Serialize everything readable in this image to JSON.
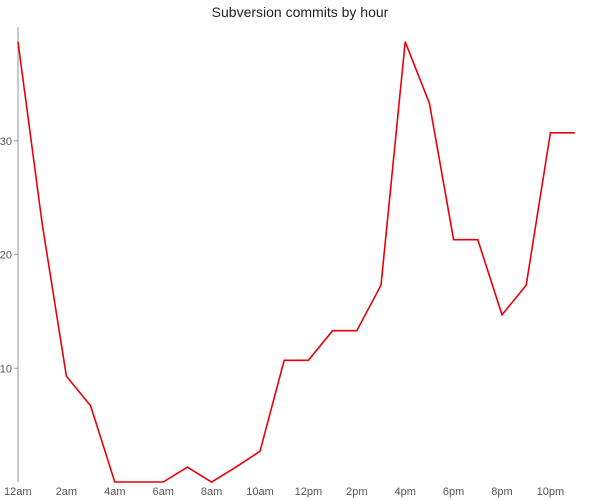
{
  "chart_data": {
    "type": "line",
    "title": "Subversion commits by hour",
    "xlabel": "",
    "ylabel": "",
    "grid": false,
    "categories": [
      "12am",
      "1am",
      "2am",
      "3am",
      "4am",
      "5am",
      "6am",
      "7am",
      "8am",
      "9am",
      "10am",
      "11am",
      "12pm",
      "1pm",
      "2pm",
      "3pm",
      "4pm",
      "5pm",
      "6pm",
      "7pm",
      "8pm",
      "9pm",
      "10pm",
      "11pm"
    ],
    "x_tick_labels": [
      "12am",
      "2am",
      "4am",
      "6am",
      "8am",
      "10am",
      "12pm",
      "2pm",
      "4pm",
      "6pm",
      "8pm",
      "10pm"
    ],
    "y_ticks": [
      10,
      20,
      30
    ],
    "ylim": [
      0,
      40
    ],
    "series": [
      {
        "color": "#e8000b",
        "values": [
          38.7,
          22.7,
          9.3,
          6.7,
          0,
          0,
          0,
          1.3,
          0,
          1.3,
          2.7,
          10.7,
          10.7,
          13.3,
          13.3,
          17.3,
          38.7,
          33.3,
          21.3,
          21.3,
          14.7,
          17.3,
          30.7,
          30.7
        ]
      }
    ]
  }
}
